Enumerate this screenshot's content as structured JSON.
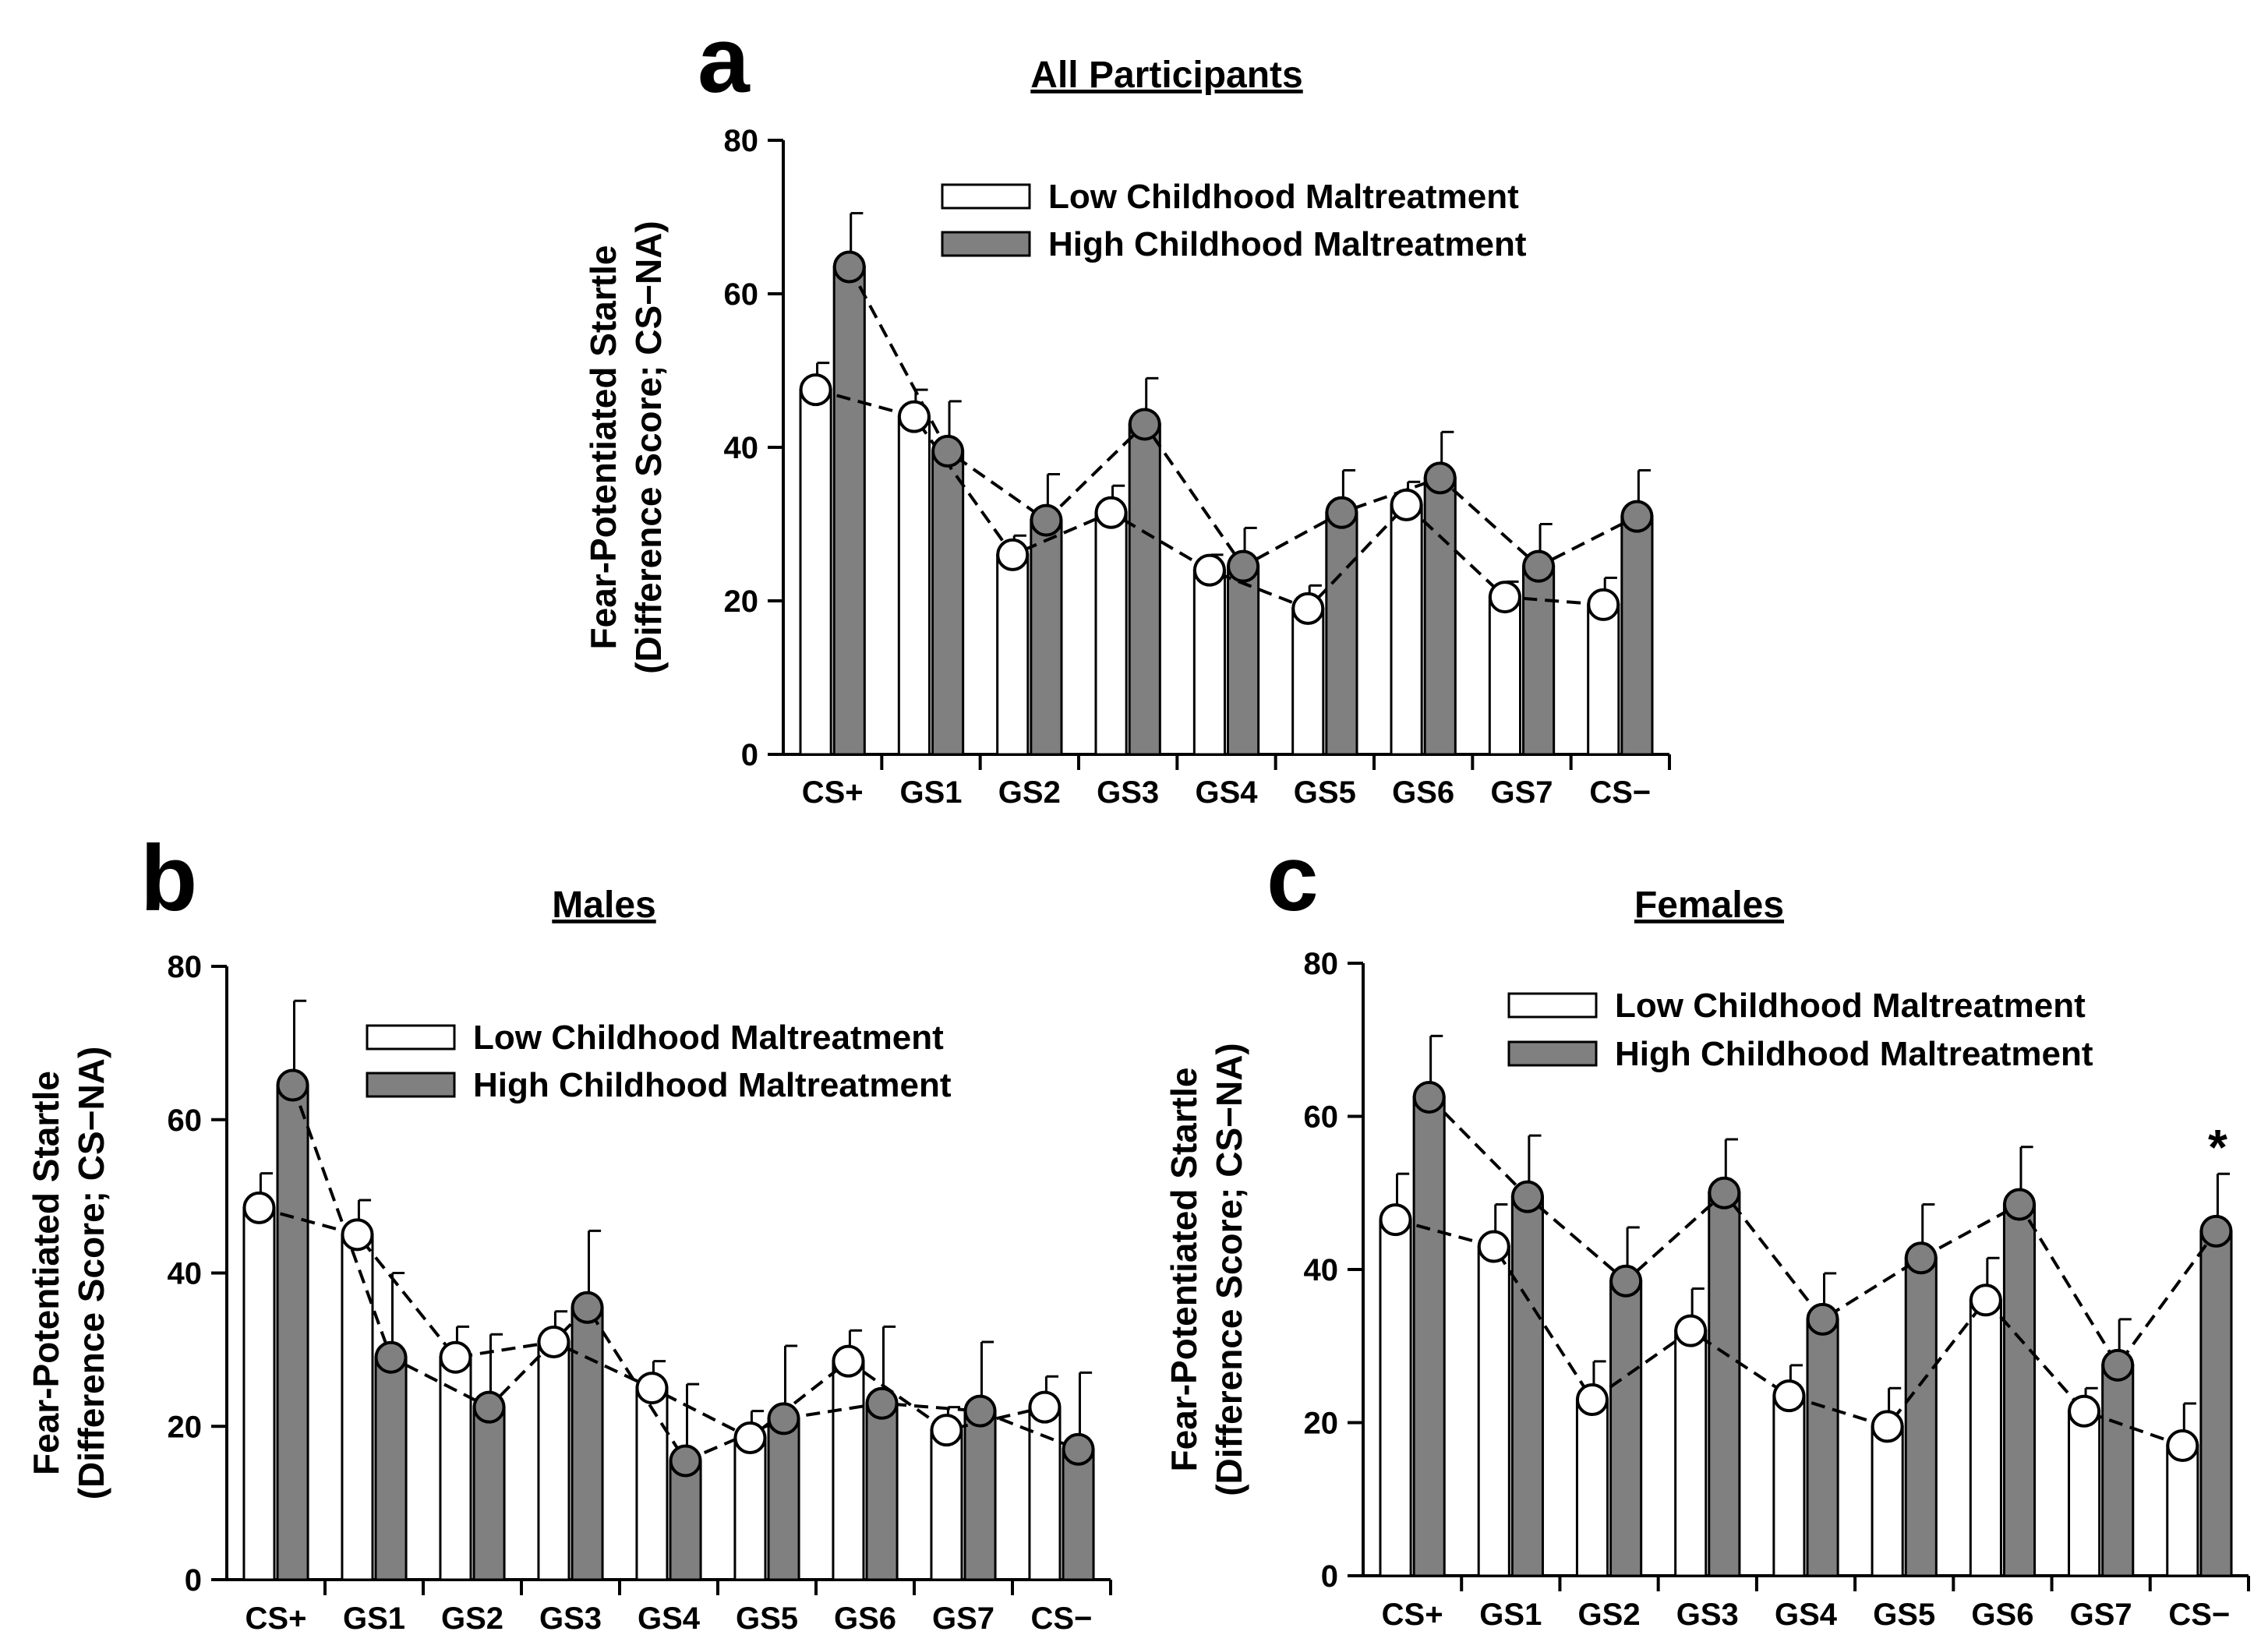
{
  "figure": {
    "panel_letters": [
      "a",
      "b",
      "c"
    ],
    "legend_low": "Low Childhood Maltreatment",
    "legend_high": "High Childhood Maltreatment",
    "colors": {
      "low_fill": "#ffffff",
      "high_fill": "#808080",
      "outline": "#000000"
    }
  },
  "chart_data": [
    {
      "type": "bar",
      "panel": "a",
      "title": "All Participants",
      "ylabel_line1": "Fear-Potentiated Startle",
      "ylabel_line2": "(Difference Score; CS−NA)",
      "categories": [
        "CS+",
        "GS1",
        "GS2",
        "GS3",
        "GS4",
        "GS5",
        "GS6",
        "GS7",
        "CS−"
      ],
      "ylim": [
        0,
        80
      ],
      "yticks": [
        "0",
        "20",
        "40",
        "60",
        "80"
      ],
      "legend_position": "top-right",
      "significance": [],
      "series": [
        {
          "name": "Low Childhood Maltreatment",
          "values": [
            47.5,
            44,
            26,
            31.5,
            24,
            19,
            32.5,
            20.5,
            19.5
          ],
          "errors": [
            3.5,
            3.5,
            2.5,
            3.5,
            2,
            3,
            3,
            2,
            3.5
          ]
        },
        {
          "name": "High Childhood Maltreatment",
          "values": [
            63.5,
            39.5,
            30.5,
            43,
            24.5,
            31.5,
            36,
            24.5,
            31
          ],
          "errors": [
            7,
            6.5,
            6,
            6,
            5,
            5.5,
            6,
            5.5,
            6
          ]
        }
      ]
    },
    {
      "type": "bar",
      "panel": "b",
      "title": "Males",
      "ylabel_line1": "Fear-Potentiated Startle",
      "ylabel_line2": "(Difference Score; CS−NA)",
      "categories": [
        "CS+",
        "GS1",
        "GS2",
        "GS3",
        "GS4",
        "GS5",
        "GS6",
        "GS7",
        "CS−"
      ],
      "ylim": [
        0,
        80
      ],
      "yticks": [
        "0",
        "20",
        "40",
        "60",
        "80"
      ],
      "legend_position": "top-right",
      "significance": [],
      "series": [
        {
          "name": "Low Childhood Maltreatment",
          "values": [
            48.5,
            45,
            29,
            31,
            25,
            18.5,
            28.5,
            19.5,
            22.5
          ],
          "errors": [
            4.5,
            4.5,
            4,
            4,
            3.5,
            3.5,
            4,
            3,
            4
          ]
        },
        {
          "name": "High Childhood Maltreatment",
          "values": [
            64.5,
            29,
            22.5,
            35.5,
            15.5,
            21,
            23,
            22,
            17
          ],
          "errors": [
            11,
            11,
            9.5,
            10,
            10,
            9.5,
            10,
            9,
            10
          ]
        }
      ]
    },
    {
      "type": "bar",
      "panel": "c",
      "title": "Females",
      "ylabel_line1": "Fear-Potentiated Startle",
      "ylabel_line2": "(Difference Score; CS−NA)",
      "categories": [
        "CS+",
        "GS1",
        "GS2",
        "GS3",
        "GS4",
        "GS5",
        "GS6",
        "GS7",
        "CS−"
      ],
      "ylim": [
        0,
        80
      ],
      "yticks": [
        "0",
        "20",
        "40",
        "60",
        "80"
      ],
      "legend_position": "top-right",
      "significance": [
        {
          "category": "CS−",
          "label": "*"
        }
      ],
      "series": [
        {
          "name": "Low Childhood Maltreatment",
          "values": [
            46.5,
            43,
            23,
            32,
            23.5,
            19.5,
            36,
            21.5,
            17
          ],
          "errors": [
            6,
            5.5,
            5,
            5.5,
            4,
            5,
            5.5,
            3,
            5.5
          ]
        },
        {
          "name": "High Childhood Maltreatment",
          "values": [
            62.5,
            49.5,
            38.5,
            50,
            33.5,
            41.5,
            48.5,
            27.5,
            45
          ],
          "errors": [
            8,
            8,
            7,
            7,
            6,
            7,
            7.5,
            6,
            7.5
          ]
        }
      ]
    }
  ]
}
